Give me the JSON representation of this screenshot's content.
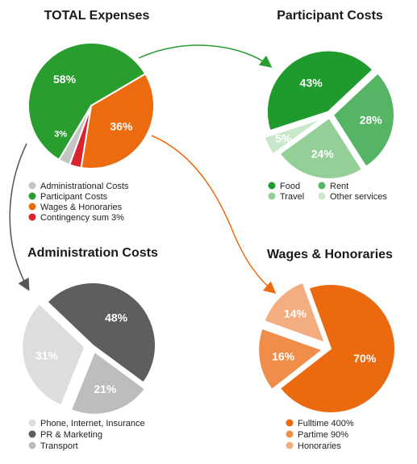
{
  "chart_data": [
    {
      "id": "total",
      "type": "pie",
      "title": "TOTAL Expenses",
      "slices": [
        {
          "label": "Administrational Costs",
          "value": 3,
          "display": "3%",
          "color": "#c4c4c4"
        },
        {
          "label": "Participant Costs",
          "value": 58,
          "display": "58%",
          "color": "#2a9d2f"
        },
        {
          "label": "Wages & Honoraries",
          "value": 36,
          "display": "36%",
          "color": "#ec6a10"
        },
        {
          "label": "Contingency sum 3%",
          "value": 3,
          "display": "3%",
          "color": "#d9232e"
        }
      ],
      "legend": [
        "Administrational Costs",
        "Participant Costs",
        "Wages & Honoraries",
        "Contingency sum 3%"
      ],
      "legend_placement": "below"
    },
    {
      "id": "participant",
      "type": "pie",
      "title": "Participant Costs",
      "slices": [
        {
          "label": "Food",
          "value": 43,
          "display": "43%",
          "color": "#1f9a2c"
        },
        {
          "label": "Rent",
          "value": 28,
          "display": "28%",
          "color": "#55b565"
        },
        {
          "label": "Travel",
          "value": 24,
          "display": "24%",
          "color": "#94cf98"
        },
        {
          "label": "Other services",
          "value": 5,
          "display": "5%",
          "color": "#c8e8c9"
        }
      ],
      "legend": [
        "Food",
        "Rent",
        "Travel",
        "Other services"
      ],
      "legend_placement": "below"
    },
    {
      "id": "admin",
      "type": "pie",
      "title": "Administration Costs",
      "slices": [
        {
          "label": "Phone, Internet, Insurance",
          "value": 31,
          "display": "31%",
          "color": "#dddddd"
        },
        {
          "label": "PR & Marketing",
          "value": 48,
          "display": "48%",
          "color": "#5e5e5e"
        },
        {
          "label": "Transport",
          "value": 21,
          "display": "21%",
          "color": "#bdbdbd"
        }
      ],
      "legend": [
        "Phone, Internet, Insurance",
        "PR & Marketing",
        "Transport"
      ],
      "legend_placement": "below"
    },
    {
      "id": "wages",
      "type": "pie",
      "title": "Wages & Honoraries",
      "slices": [
        {
          "label": "Fulltime 400%",
          "value": 70,
          "display": "70%",
          "color": "#eb6a10"
        },
        {
          "label": "Partime 90%",
          "value": 16,
          "display": "16%",
          "color": "#f08d4a"
        },
        {
          "label": "Honoraries",
          "value": 14,
          "display": "14%",
          "color": "#f3ad80"
        }
      ],
      "legend": [
        "Fulltime 400%",
        "Partime 90%",
        "Honoraries"
      ],
      "legend_placement": "below"
    }
  ],
  "arrows": [
    {
      "from": "Participant Costs",
      "to": "Participant Costs",
      "color": "#2a9d2f"
    },
    {
      "from": "Wages & Honoraries",
      "to": "Wages & Honoraries",
      "color": "#ec6a10"
    },
    {
      "from": "Administrational Costs",
      "to": "Administration Costs",
      "color": "#555555"
    }
  ]
}
